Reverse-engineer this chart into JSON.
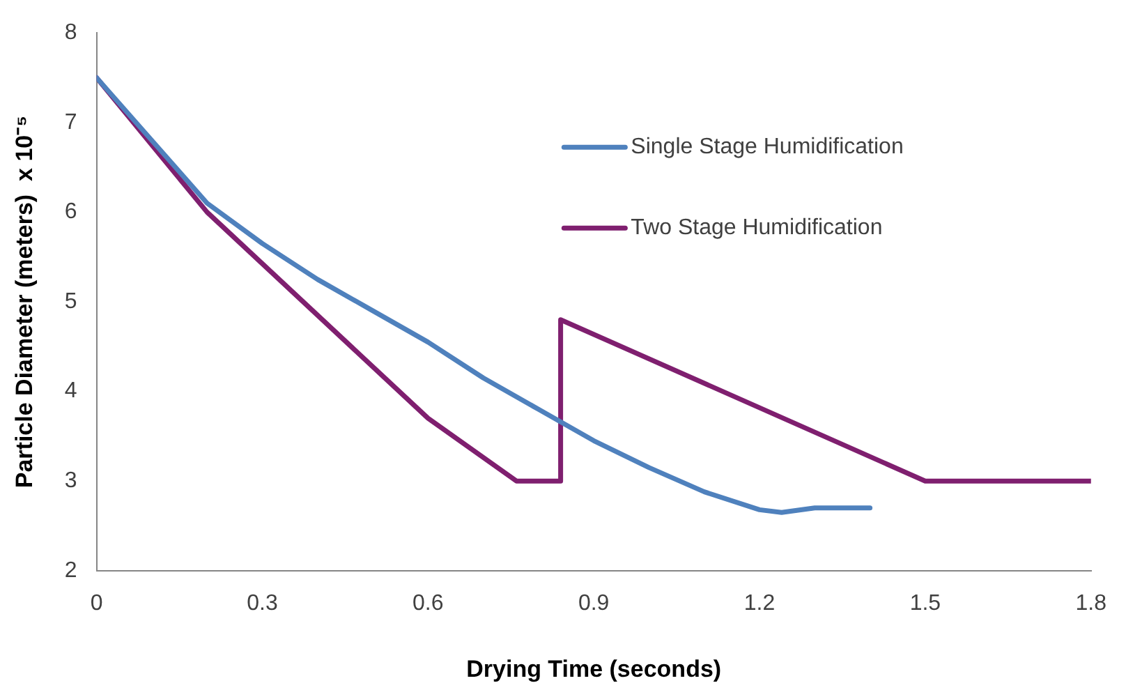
{
  "chart_data": {
    "type": "line",
    "xlabel": "Drying Time (seconds)",
    "ylabel": "Particle Diameter (meters)  x 10⁻⁵",
    "xlim": [
      0,
      1.8
    ],
    "xticks": [
      0,
      0.3,
      0.6,
      0.9,
      1.2,
      1.5,
      1.8
    ],
    "ylim": [
      2,
      8
    ],
    "yticks": [
      2,
      3,
      4,
      5,
      6,
      7,
      8
    ],
    "grid": false,
    "legend": "top right",
    "marker": "none",
    "line_style": "solid",
    "series": [
      {
        "name": "Single Stage Humidification",
        "color": "#4f81bd",
        "x": [
          0,
          0.1,
          0.2,
          0.3,
          0.4,
          0.5,
          0.6,
          0.7,
          0.8,
          0.9,
          1.0,
          1.1,
          1.2,
          1.24,
          1.3,
          1.4
        ],
        "values": [
          7.5,
          6.8,
          6.1,
          5.65,
          5.25,
          4.9,
          4.55,
          4.15,
          3.8,
          3.45,
          3.15,
          2.88,
          2.68,
          2.65,
          2.7,
          2.7
        ]
      },
      {
        "name": "Two Stage Humidification",
        "color": "#7f1f6f",
        "x": [
          0,
          0.2,
          0.6,
          0.76,
          0.84,
          0.84,
          1.5,
          1.8
        ],
        "values": [
          7.5,
          6.0,
          3.7,
          3.0,
          3.0,
          4.8,
          3.0,
          3.0
        ]
      }
    ]
  }
}
